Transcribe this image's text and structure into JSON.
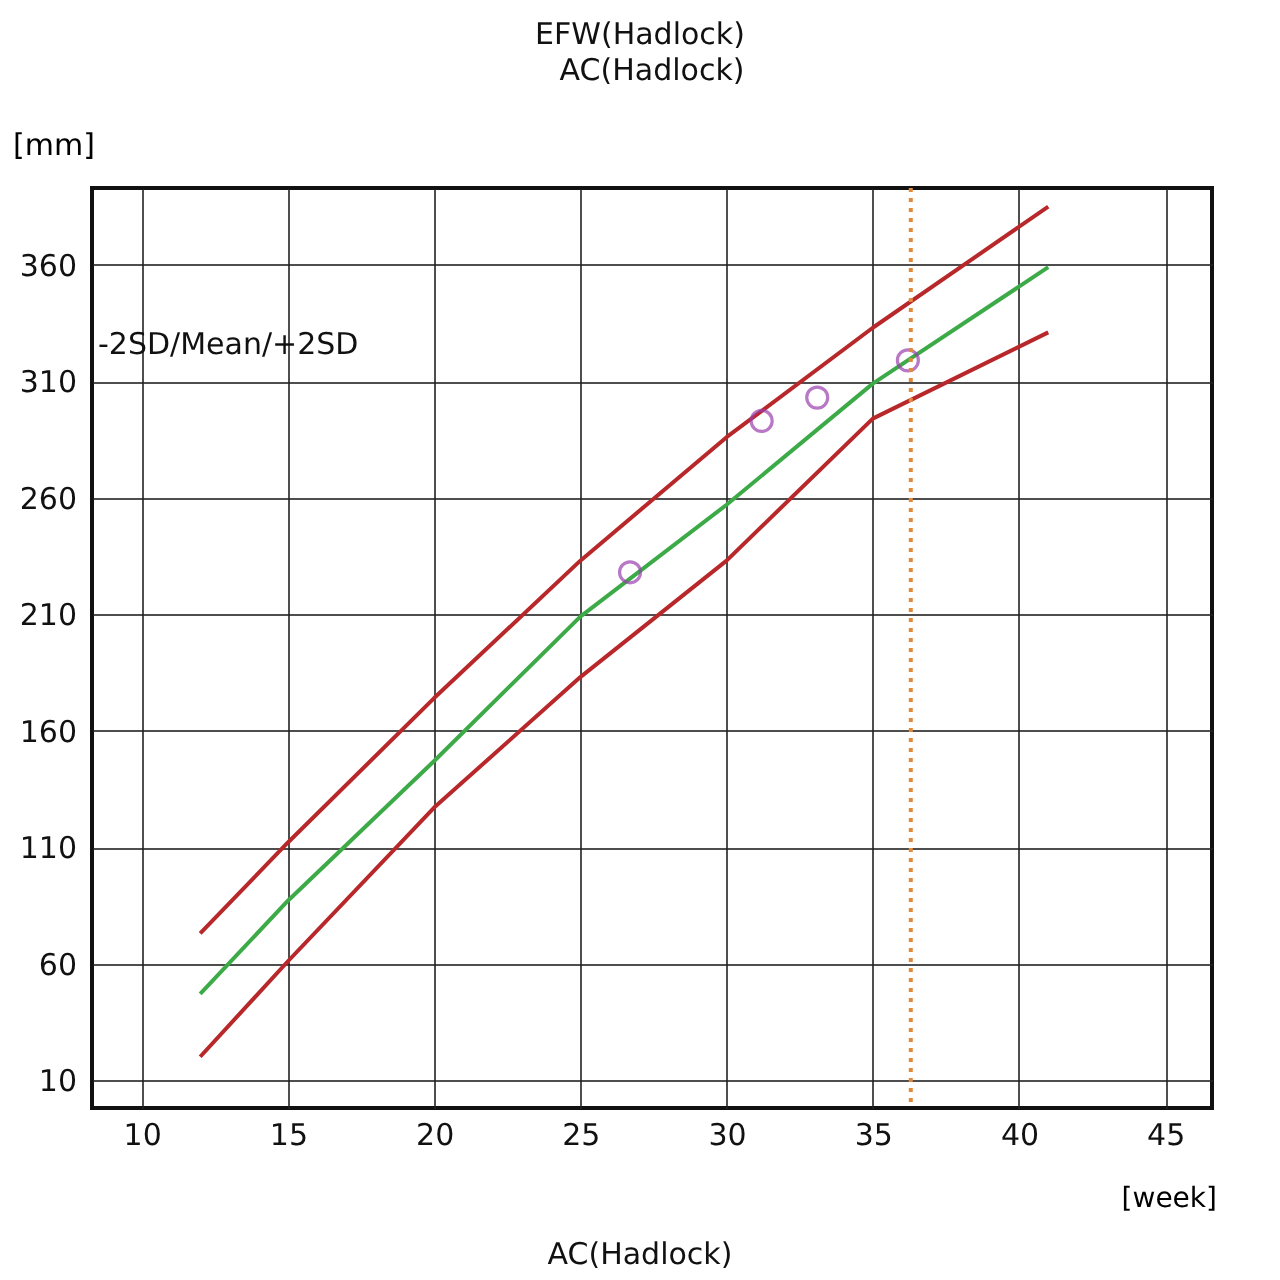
{
  "chart_data": {
    "type": "line",
    "title": "AC(Hadlock)",
    "xlabel": "[week]",
    "ylabel": "[mm]",
    "annotations": [
      "EFW(Hadlock)",
      "-2SD/Mean/+2SD",
      "AC(Hadlock)"
    ],
    "xlim": [
      8.3,
      46.6
    ],
    "xticks": [
      10,
      15,
      20,
      25,
      30,
      35,
      40,
      45
    ],
    "ylim": [
      -2,
      393
    ],
    "yticks": [
      10,
      60,
      110,
      160,
      210,
      260,
      310,
      360
    ],
    "grid": true,
    "series": [
      {
        "color": "#b8282a",
        "x": [
          12,
          15,
          20,
          25,
          30,
          35,
          41
        ],
        "values": [
          73,
          112,
          174,
          233,
          286,
          333,
          385
        ]
      },
      {
        "color": "#3daa48",
        "x": [
          12,
          15,
          20,
          25,
          30,
          35,
          41
        ],
        "values": [
          47,
          87,
          147,
          209,
          257,
          309,
          359
        ]
      },
      {
        "color": "#b8282a",
        "x": [
          12,
          15,
          20,
          25,
          30,
          35,
          41
        ],
        "values": [
          20,
          61,
          127,
          183,
          233,
          294,
          331
        ]
      },
      {
        "type": "scatter",
        "color": "#9b3fae",
        "marker": "circle",
        "x": [
          26.7,
          31.2,
          33.1,
          36.2
        ],
        "values": [
          228,
          293,
          303,
          319
        ]
      }
    ],
    "ref_lines": [
      {
        "axis": "x",
        "value": 36.3,
        "color": "#e08a3c",
        "line_style": "dotted"
      }
    ]
  }
}
